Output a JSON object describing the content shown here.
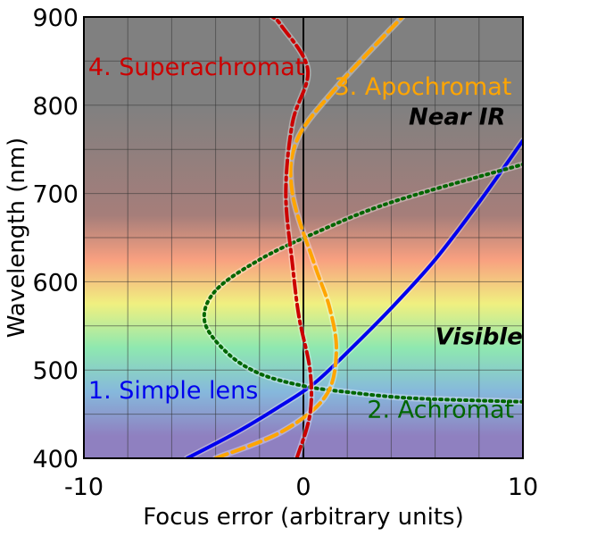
{
  "chart_data": {
    "type": "line",
    "title": "",
    "xlabel": "Focus error (arbitrary units)",
    "ylabel": "Wavelength (nm)",
    "xlim": [
      -10,
      10
    ],
    "ylim": [
      400,
      900
    ],
    "x_ticks": [
      -10,
      0,
      10
    ],
    "x_tick_labels": [
      "-10",
      "0",
      "10"
    ],
    "y_ticks": [
      400,
      500,
      600,
      700,
      800,
      900
    ],
    "y_tick_labels": [
      "400",
      "500",
      "600",
      "700",
      "800",
      "900"
    ],
    "grid": true,
    "background_bands": [
      {
        "from": 400,
        "to": 450,
        "color": "#8f80c0"
      },
      {
        "from": 450,
        "to": 500,
        "color": "#86b8dc"
      },
      {
        "from": 500,
        "to": 550,
        "color": "#8ee8b0"
      },
      {
        "from": 550,
        "to": 600,
        "color": "#f0f080"
      },
      {
        "from": 600,
        "to": 650,
        "color": "#f8a080"
      },
      {
        "from": 650,
        "to": 700,
        "color": "#a67e7a"
      },
      {
        "from": 700,
        "to": 900,
        "color": "#808080"
      }
    ],
    "regions": [
      {
        "label": "Near IR",
        "x": 7,
        "y": 778
      },
      {
        "label": "Visible",
        "x": 8,
        "y": 529
      }
    ],
    "series": [
      {
        "name": "1. Simple lens",
        "color": "#0000ee",
        "style": "solid",
        "label_pos": {
          "x": -9.8,
          "y": 468
        },
        "points": [
          [
            -5.3,
            400
          ],
          [
            -3,
            430
          ],
          [
            -1,
            460
          ],
          [
            0.5,
            485
          ],
          [
            2,
            520
          ],
          [
            4,
            570
          ],
          [
            6,
            625
          ],
          [
            8,
            690
          ],
          [
            10,
            760
          ]
        ]
      },
      {
        "name": "2. Achromat",
        "color": "#006600",
        "style": "dotted",
        "label_pos": {
          "x": 2.9,
          "y": 446
        },
        "points": [
          [
            10,
            464
          ],
          [
            5,
            468
          ],
          [
            2,
            475
          ],
          [
            0,
            482
          ],
          [
            -2,
            496
          ],
          [
            -3.5,
            520
          ],
          [
            -4.5,
            555
          ],
          [
            -4,
            590
          ],
          [
            -2,
            625
          ],
          [
            0.5,
            655
          ],
          [
            4,
            690
          ],
          [
            10,
            733
          ]
        ]
      },
      {
        "name": "3. Apochromat",
        "color": "#ffa500",
        "style": "dashed",
        "label_pos": {
          "x": 1.4,
          "y": 812
        },
        "points": [
          [
            -4,
            400
          ],
          [
            -1,
            430
          ],
          [
            1,
            470
          ],
          [
            1.5,
            520
          ],
          [
            1.2,
            570
          ],
          [
            0.5,
            620
          ],
          [
            -0.5,
            700
          ],
          [
            -0.3,
            760
          ],
          [
            1.5,
            820
          ],
          [
            4.5,
            900
          ]
        ]
      },
      {
        "name": "4. Superachromat",
        "color": "#cc0000",
        "style": "dashdot",
        "label_pos": {
          "x": -9.8,
          "y": 834
        },
        "points": [
          [
            -0.3,
            400
          ],
          [
            0.3,
            450
          ],
          [
            0.3,
            500
          ],
          [
            -0.2,
            560
          ],
          [
            -0.5,
            620
          ],
          [
            -0.8,
            700
          ],
          [
            -0.5,
            780
          ],
          [
            0.2,
            840
          ],
          [
            -1,
            890
          ],
          [
            -1.4,
            900
          ]
        ]
      }
    ]
  }
}
